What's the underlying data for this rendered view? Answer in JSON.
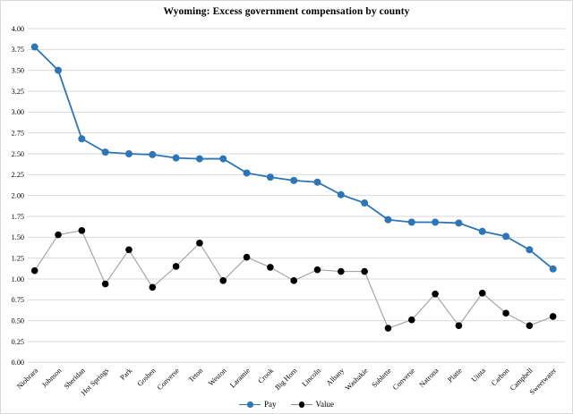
{
  "chart_data": {
    "type": "line",
    "title": "Wyoming: Excess government compensation by county",
    "xlabel": "",
    "ylabel": "",
    "ylim": [
      0,
      4
    ],
    "ytick_step": 0.25,
    "ytick_labels": [
      "0.00",
      "0.25",
      "0.50",
      "0.75",
      "1.00",
      "1.25",
      "1.50",
      "1.75",
      "2.00",
      "2.25",
      "2.50",
      "2.75",
      "3.00",
      "3.25",
      "3.50",
      "3.75",
      "4.00"
    ],
    "grid": "horizontal",
    "legend_position": "bottom",
    "categories": [
      "Niobrara",
      "Johnson",
      "Sheridan",
      "Hot Springs",
      "Park",
      "Goshen",
      "Converse",
      "Teton",
      "Weston",
      "Laramie",
      "Crook",
      "Big Horn",
      "Lincoln",
      "Albany",
      "Washakie",
      "Sublette",
      "Converse",
      "Natrona",
      "Platte",
      "Uinta",
      "Carbon",
      "Campbell",
      "Sweetwater"
    ],
    "series": [
      {
        "name": "Pay",
        "color": "#2e75b6",
        "line_color": "#2e75b6",
        "values": [
          3.78,
          3.5,
          2.68,
          2.52,
          2.5,
          2.49,
          2.45,
          2.44,
          2.44,
          2.27,
          2.22,
          2.18,
          2.16,
          2.01,
          1.91,
          1.71,
          1.68,
          1.68,
          1.67,
          1.57,
          1.51,
          1.35,
          1.12
        ]
      },
      {
        "name": "Value",
        "color": "#000000",
        "line_color": "#a6a6a6",
        "values": [
          1.1,
          1.53,
          1.58,
          0.94,
          1.35,
          0.9,
          1.15,
          1.43,
          0.98,
          1.26,
          1.14,
          0.98,
          1.11,
          1.09,
          1.09,
          0.41,
          0.51,
          0.82,
          0.44,
          0.83,
          0.59,
          0.44,
          0.55
        ]
      }
    ],
    "gridline_color": "#d9d9d9"
  }
}
